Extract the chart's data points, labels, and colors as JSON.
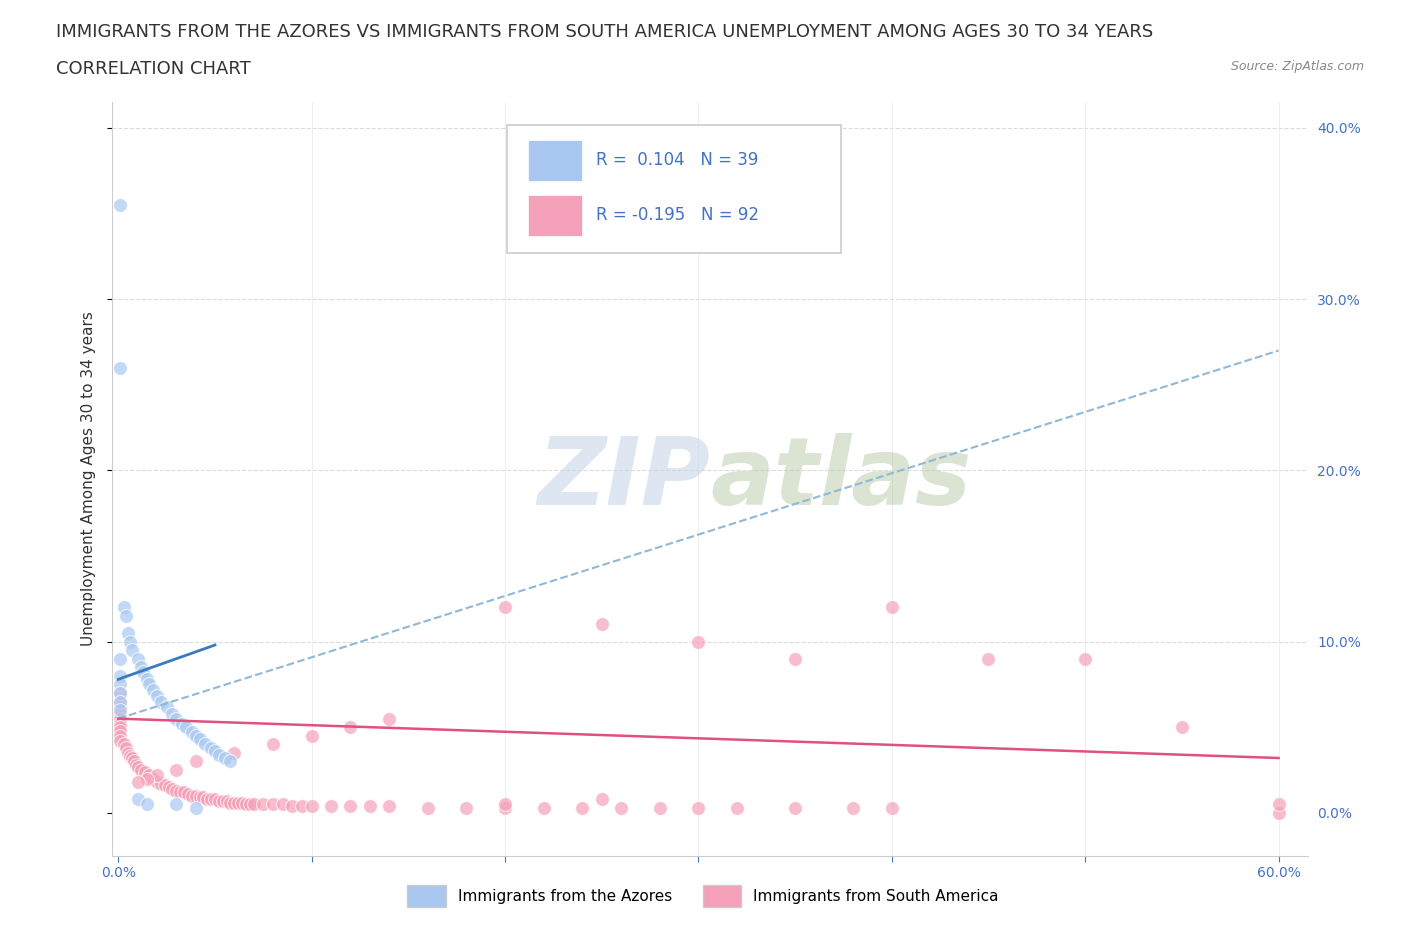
{
  "title_line1": "IMMIGRANTS FROM THE AZORES VS IMMIGRANTS FROM SOUTH AMERICA UNEMPLOYMENT AMONG AGES 30 TO 34 YEARS",
  "title_line2": "CORRELATION CHART",
  "source": "Source: ZipAtlas.com",
  "ylabel": "Unemployment Among Ages 30 to 34 years",
  "xlim": [
    0.0,
    0.6
  ],
  "ylim": [
    0.0,
    0.4
  ],
  "xtick_positions": [
    0.0,
    0.1,
    0.2,
    0.3,
    0.4,
    0.5,
    0.6
  ],
  "xtick_labels": [
    "0.0%",
    "",
    "",
    "",
    "",
    "",
    "60.0%"
  ],
  "ytick_positions": [
    0.0,
    0.1,
    0.2,
    0.3,
    0.4
  ],
  "right_ytick_labels": [
    "0.0%",
    "10.0%",
    "20.0%",
    "30.0%",
    "40.0%"
  ],
  "azores_color": "#a8c8f0",
  "sa_color": "#f4a0b8",
  "azores_line_color": "#3a7abf",
  "sa_line_color": "#e05080",
  "dashed_line_color": "#90b8d8",
  "watermark_color": "#c8d8e8",
  "background_color": "#ffffff",
  "grid_color": "#cccccc",
  "tick_color": "#4472c4",
  "title_fontsize": 13,
  "axis_label_fontsize": 11,
  "tick_fontsize": 10,
  "legend_r1": "R =  0.104",
  "legend_n1": "N = 39",
  "legend_r2": "R = -0.195",
  "legend_n2": "N = 92",
  "azores_x": [
    0.001,
    0.001,
    0.001,
    0.001,
    0.001,
    0.001,
    0.001,
    0.001,
    0.003,
    0.004,
    0.005,
    0.006,
    0.007,
    0.01,
    0.012,
    0.013,
    0.015,
    0.016,
    0.018,
    0.02,
    0.022,
    0.025,
    0.028,
    0.03,
    0.033,
    0.035,
    0.038,
    0.04,
    0.042,
    0.045,
    0.048,
    0.05,
    0.052,
    0.055,
    0.058,
    0.01,
    0.015,
    0.03,
    0.04
  ],
  "azores_y": [
    0.355,
    0.26,
    0.09,
    0.08,
    0.075,
    0.07,
    0.065,
    0.06,
    0.12,
    0.115,
    0.105,
    0.1,
    0.095,
    0.09,
    0.085,
    0.082,
    0.078,
    0.075,
    0.072,
    0.068,
    0.065,
    0.062,
    0.058,
    0.055,
    0.052,
    0.05,
    0.047,
    0.045,
    0.043,
    0.04,
    0.038,
    0.036,
    0.034,
    0.032,
    0.03,
    0.008,
    0.005,
    0.005,
    0.003
  ],
  "sa_x": [
    0.001,
    0.001,
    0.001,
    0.001,
    0.001,
    0.001,
    0.001,
    0.001,
    0.001,
    0.001,
    0.003,
    0.004,
    0.005,
    0.006,
    0.007,
    0.008,
    0.009,
    0.01,
    0.012,
    0.014,
    0.016,
    0.018,
    0.02,
    0.022,
    0.024,
    0.026,
    0.028,
    0.03,
    0.032,
    0.034,
    0.036,
    0.038,
    0.04,
    0.042,
    0.044,
    0.046,
    0.048,
    0.05,
    0.052,
    0.054,
    0.056,
    0.058,
    0.06,
    0.062,
    0.064,
    0.066,
    0.068,
    0.07,
    0.075,
    0.08,
    0.085,
    0.09,
    0.095,
    0.1,
    0.11,
    0.12,
    0.13,
    0.14,
    0.16,
    0.18,
    0.2,
    0.22,
    0.24,
    0.26,
    0.28,
    0.3,
    0.32,
    0.35,
    0.38,
    0.4,
    0.2,
    0.25,
    0.3,
    0.35,
    0.4,
    0.45,
    0.5,
    0.55,
    0.6,
    0.6,
    0.14,
    0.12,
    0.1,
    0.08,
    0.06,
    0.04,
    0.03,
    0.02,
    0.015,
    0.01,
    0.2,
    0.25
  ],
  "sa_y": [
    0.07,
    0.065,
    0.062,
    0.058,
    0.055,
    0.052,
    0.05,
    0.048,
    0.045,
    0.042,
    0.04,
    0.038,
    0.035,
    0.033,
    0.032,
    0.03,
    0.028,
    0.027,
    0.025,
    0.024,
    0.022,
    0.02,
    0.018,
    0.017,
    0.016,
    0.015,
    0.014,
    0.013,
    0.012,
    0.012,
    0.011,
    0.01,
    0.01,
    0.009,
    0.009,
    0.008,
    0.008,
    0.008,
    0.007,
    0.007,
    0.007,
    0.006,
    0.006,
    0.006,
    0.006,
    0.005,
    0.005,
    0.005,
    0.005,
    0.005,
    0.005,
    0.004,
    0.004,
    0.004,
    0.004,
    0.004,
    0.004,
    0.004,
    0.003,
    0.003,
    0.003,
    0.003,
    0.003,
    0.003,
    0.003,
    0.003,
    0.003,
    0.003,
    0.003,
    0.003,
    0.12,
    0.11,
    0.1,
    0.09,
    0.12,
    0.09,
    0.09,
    0.05,
    0.0,
    0.005,
    0.055,
    0.05,
    0.045,
    0.04,
    0.035,
    0.03,
    0.025,
    0.022,
    0.02,
    0.018,
    0.005,
    0.008
  ],
  "azores_trend_x": [
    0.0,
    0.05
  ],
  "azores_trend_y": [
    0.078,
    0.098
  ],
  "sa_trend_x": [
    0.0,
    0.6
  ],
  "sa_trend_y": [
    0.055,
    0.032
  ],
  "dashed_trend_x": [
    0.0,
    0.6
  ],
  "dashed_trend_y": [
    0.055,
    0.27
  ]
}
